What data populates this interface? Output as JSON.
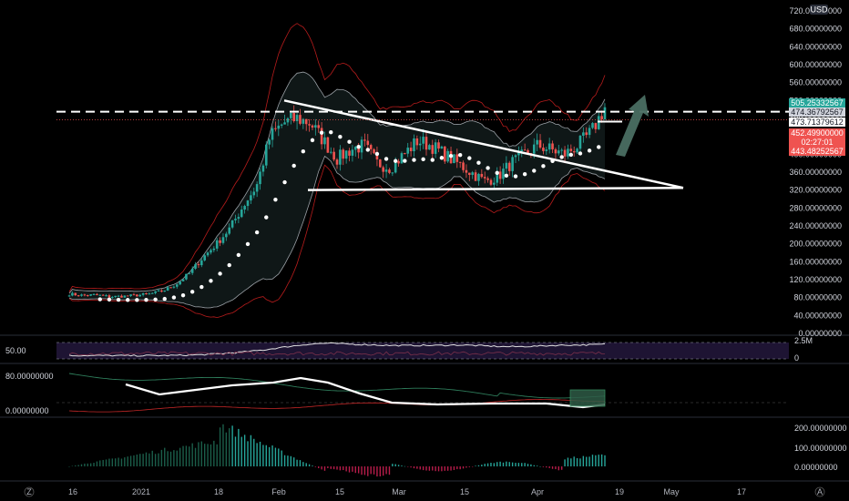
{
  "chart_data": [
    {
      "type": "candlestick",
      "title": "",
      "price_axis": {
        "currency_label": "USD",
        "ticks": [
          "720.00000000",
          "680.00000000",
          "640.00000000",
          "600.00000000",
          "560.00000000",
          "520.00000000",
          "480.00000000",
          "440.00000000",
          "400.00000000",
          "360.00000000",
          "320.00000000",
          "280.00000000",
          "240.00000000",
          "200.00000000",
          "160.00000000",
          "120.00000000",
          "80.00000000",
          "40.00000000",
          "0.00000000"
        ],
        "ylim": [
          0,
          720
        ]
      },
      "time_axis": {
        "ticks": [
          "16",
          "2021",
          "18",
          "Feb",
          "15",
          "Mar",
          "15",
          "Apr",
          "19",
          "May",
          "17"
        ]
      },
      "price_badges": [
        {
          "text": "505.25332567",
          "color": "#26a69a"
        },
        {
          "text": "474.36792567",
          "color": "#d1d4dc"
        },
        {
          "text": "473.71379612",
          "color": "#ffffff"
        },
        {
          "text": "452.49900000",
          "color": "#ef5350"
        },
        {
          "text": "02:27:01",
          "color": "#ef5350"
        },
        {
          "text": "443.48252567",
          "color": "#ef5350"
        }
      ],
      "series": [
        {
          "name": "",
          "approx_close": [
            88,
            85,
            86,
            82,
            83,
            85,
            88,
            95,
            110,
            135,
            170,
            200,
            235,
            285,
            330,
            440,
            470,
            480,
            470,
            430,
            390,
            410,
            420,
            380,
            370,
            400,
            430,
            420,
            400,
            380,
            360,
            340,
            350,
            380,
            400,
            420,
            410,
            400,
            420,
            450,
            505
          ]
        }
      ],
      "annotations": [
        "descending triangle trendline",
        "support line near 325",
        "dashed resistance near 520",
        "upward arrow"
      ]
    },
    {
      "type": "line",
      "title": "",
      "axis_ticks": [
        "2.5M",
        "0"
      ],
      "left_label": "50.00"
    },
    {
      "type": "line",
      "title": "",
      "axis_ticks": [
        "80.00000000",
        "0.00000000"
      ]
    },
    {
      "type": "bar",
      "title": "",
      "axis_ticks": [
        "200.00000000",
        "100.00000000",
        "0.00000000"
      ]
    }
  ],
  "footer": {
    "left_icon": "Z",
    "right_icon": "A"
  },
  "colors": {
    "up": "#26a69a",
    "down": "#ef5350",
    "band": "#9aa0a6",
    "envelope": "#b71c1c",
    "oscillator_bg": "#1e1433",
    "background": "#000000"
  }
}
